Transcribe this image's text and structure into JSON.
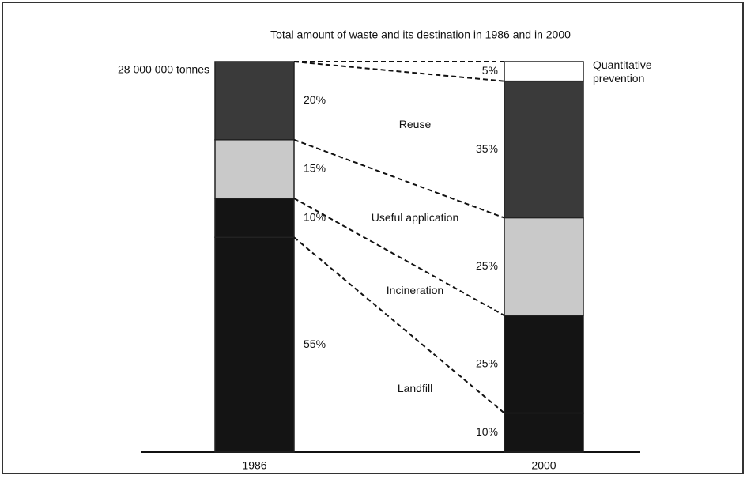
{
  "chart_data": {
    "type": "stacked_bar",
    "title": "Total amount of waste and its destination in 1986 and in 2000",
    "annotation": "28 000 000 tonnes",
    "categories": [
      "1986",
      "2000"
    ],
    "ylim": [
      0,
      100
    ],
    "series": [
      {
        "name": "Quantitative prevention",
        "color": "#ffffff",
        "values": [
          null,
          5
        ],
        "value_labels": [
          null,
          "5%"
        ]
      },
      {
        "name": "Reuse",
        "color": "#3a3a3a",
        "values": [
          20,
          35
        ],
        "value_labels": [
          "20%",
          "35%"
        ]
      },
      {
        "name": "Useful application",
        "color": "#c9c9c9",
        "values": [
          15,
          25
        ],
        "value_labels": [
          "15%",
          "25%"
        ]
      },
      {
        "name": "Incineration",
        "color": "#141414",
        "values": [
          10,
          25
        ],
        "value_labels": [
          "10%",
          "25%"
        ]
      },
      {
        "name": "Landfill",
        "color": "#141414",
        "values": [
          55,
          10
        ],
        "value_labels": [
          "55%",
          "10%"
        ]
      }
    ]
  }
}
